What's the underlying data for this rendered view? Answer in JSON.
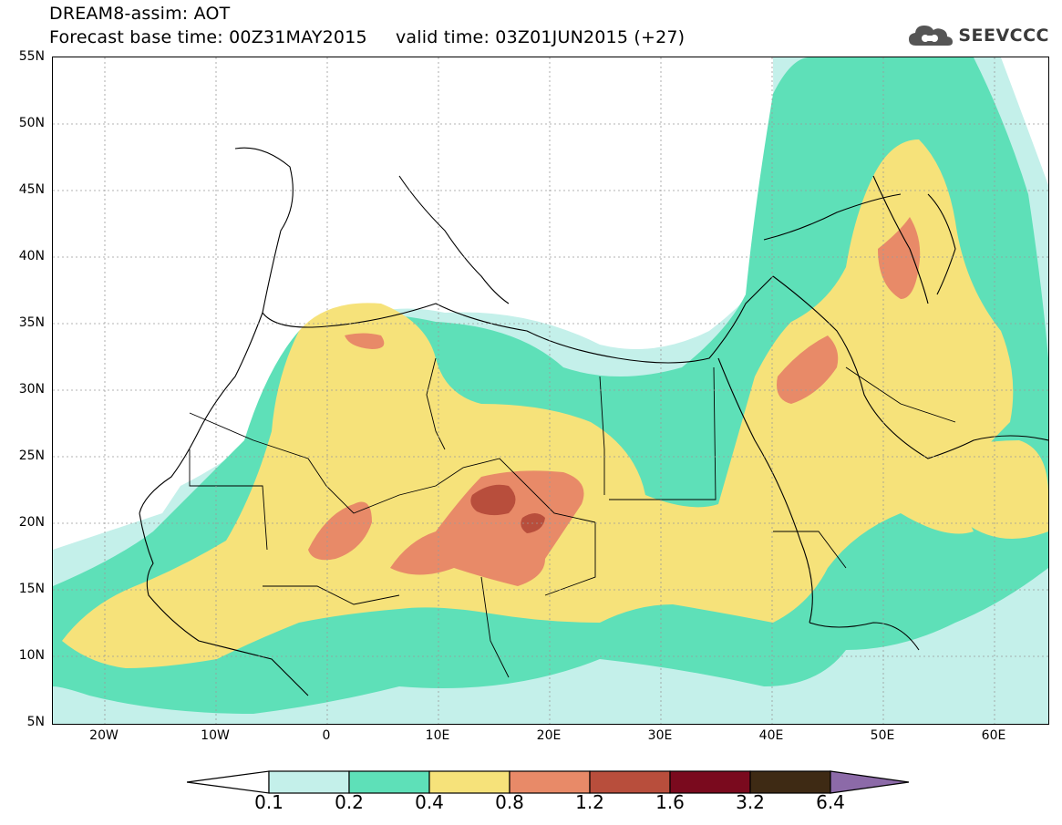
{
  "header": {
    "title_line1": "DREAM8-assim: AOT",
    "title_line2": "Forecast base time: 00Z31MAY2015     valid time: 03Z01JUN2015 (+27)"
  },
  "logo": {
    "text": "SEEVCCC",
    "icon": "cloud-icon"
  },
  "map": {
    "lat_labels": [
      "55N",
      "50N",
      "45N",
      "40N",
      "35N",
      "30N",
      "25N",
      "20N",
      "15N",
      "10N",
      "5N"
    ],
    "lon_labels": [
      "20W",
      "10W",
      "0",
      "10E",
      "20E",
      "30E",
      "40E",
      "50E",
      "60E"
    ],
    "gridline_color": "#9a9a9a",
    "coastline_color": "#000000"
  },
  "legend": {
    "thresholds": [
      "0.1",
      "0.2",
      "0.4",
      "0.8",
      "1.2",
      "1.6",
      "3.2",
      "6.4"
    ],
    "colors": [
      "#ffffff",
      "#c4f0ea",
      "#5ee0b8",
      "#f6e27a",
      "#e88a68",
      "#b84e3c",
      "#7a0a1e",
      "#3e2a14",
      "#8c6aa8"
    ]
  }
}
